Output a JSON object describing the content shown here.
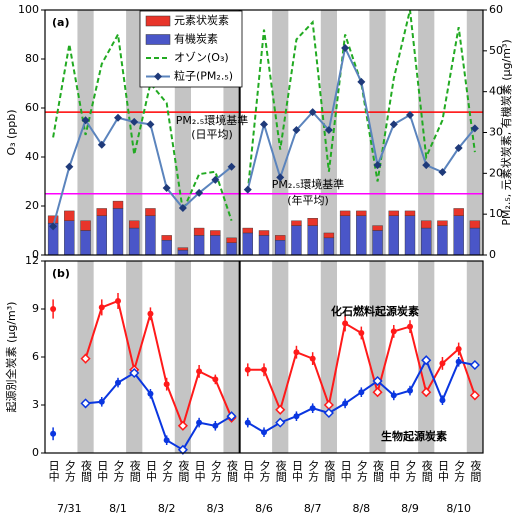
{
  "x_axis": {
    "categories": [
      "日中",
      "夕方",
      "夜間",
      "日中",
      "夕方",
      "夜間",
      "日中",
      "夕方",
      "夜間",
      "日中",
      "夕方",
      "夜間",
      "日中",
      "夕方",
      "夜間",
      "日中",
      "夕方",
      "夜間",
      "日中",
      "夕方",
      "夜間",
      "日中",
      "夕方",
      "夜間",
      "日中",
      "夕方",
      "夜間"
    ],
    "dates": [
      "7/31",
      "8/1",
      "8/2",
      "8/3",
      "8/6",
      "8/7",
      "8/8",
      "8/9",
      "8/10"
    ]
  },
  "chart_data": [
    {
      "type": "bar",
      "panel_label": "(a)",
      "ylabel": "O₃ (ppb)",
      "y2label": "PM₂.₅, 元素状炭素, 有機炭素 (μg/m³)",
      "ylim": [
        0,
        100
      ],
      "yticks": [
        0,
        20,
        40,
        60,
        80,
        100
      ],
      "y2lim": [
        0,
        60
      ],
      "y2ticks": [
        0,
        10,
        20,
        30,
        40,
        50,
        60
      ],
      "series": [
        {
          "name": "元素状炭素",
          "type": "bar",
          "axis": "y2",
          "color": "#e8352a",
          "values": [
            1.8,
            2.4,
            2.4,
            1.8,
            1.8,
            1.8,
            1.8,
            1.2,
            0.6,
            1.8,
            1.2,
            1.2,
            1.2,
            1.2,
            1.2,
            1.2,
            1.8,
            1.2,
            1.2,
            1.2,
            1.2,
            1.2,
            1.2,
            1.8,
            1.2,
            1.8,
            1.8
          ]
        },
        {
          "name": "有機炭素",
          "type": "bar",
          "axis": "y2",
          "color": "#4a56c8",
          "values": [
            7.8,
            8.4,
            6,
            9.6,
            11.4,
            6.6,
            9.6,
            3.6,
            1.2,
            4.8,
            4.8,
            3,
            5.4,
            4.8,
            3.6,
            7.2,
            7.2,
            4.2,
            9.6,
            9.6,
            6,
            9.6,
            9.6,
            6.6,
            7.2,
            9.6,
            6.6
          ]
        },
        {
          "name": "オゾン(O₃)",
          "type": "line",
          "style": "dashed",
          "color": "#22aa22",
          "values": [
            48,
            86,
            49,
            78,
            90,
            41,
            70,
            62,
            18,
            33,
            34,
            14,
            26,
            92,
            43,
            88,
            95,
            34,
            90,
            70,
            30,
            72,
            100,
            40,
            55,
            93,
            42
          ]
        },
        {
          "name": "粒子(PM₂.₅)",
          "type": "line",
          "axis": "y2",
          "marker": "diamond",
          "color": "#5b84bd",
          "marker_color": "#1f3a7a",
          "values": [
            7,
            21.6,
            33,
            27,
            33.6,
            32.6,
            32,
            16.4,
            11.5,
            15.2,
            18.4,
            21.6,
            16,
            32,
            19,
            30.6,
            35,
            30.6,
            50.7,
            42.4,
            22,
            32,
            34.3,
            22,
            20.3,
            26.2,
            31
          ]
        }
      ],
      "hlines": [
        {
          "value": 35,
          "axis": "y2",
          "color": "#ff0000",
          "label": [
            "PM₂.₅環境基準",
            "(日平均)"
          ]
        },
        {
          "value": 15,
          "axis": "y2",
          "color": "#ff00ff",
          "label": [
            "PM₂.₅環境基準",
            "(年平均)"
          ]
        }
      ]
    },
    {
      "type": "line",
      "panel_label": "(b)",
      "ylabel": "起源別全炭素 (μg/m³)",
      "ylim": [
        0,
        12
      ],
      "yticks": [
        0,
        3,
        6,
        9,
        12
      ],
      "series": [
        {
          "name": "化石燃料起源炭素",
          "color": "#ff1a1a",
          "values": [
            9.0,
            null,
            5.9,
            9.1,
            9.5,
            5.2,
            8.7,
            4.3,
            1.7,
            5.1,
            4.6,
            2.2,
            5.2,
            5.2,
            2.7,
            6.3,
            5.9,
            3.0,
            8.1,
            7.5,
            3.8,
            7.6,
            7.9,
            3.8,
            5.6,
            6.5,
            3.6
          ],
          "errors": [
            0.6,
            null,
            0.3,
            0.5,
            0.5,
            0.3,
            0.4,
            0.4,
            0.2,
            0.4,
            0.3,
            0.2,
            0.4,
            0.4,
            0.2,
            0.4,
            0.4,
            0.2,
            0.5,
            0.4,
            0.2,
            0.4,
            0.4,
            0.2,
            0.4,
            0.4,
            0.2
          ]
        },
        {
          "name": "生物起源炭素",
          "color": "#0a36e0",
          "values": [
            1.2,
            null,
            3.1,
            3.2,
            4.4,
            5.0,
            3.7,
            0.8,
            0.2,
            1.9,
            1.7,
            2.3,
            1.9,
            1.3,
            1.9,
            2.3,
            2.8,
            2.5,
            3.1,
            3.8,
            4.5,
            3.6,
            3.9,
            5.8,
            3.3,
            5.7,
            5.5
          ],
          "errors": [
            0.4,
            null,
            0.2,
            0.3,
            0.3,
            0.2,
            0.3,
            0.3,
            0.2,
            0.3,
            0.3,
            0.2,
            0.3,
            0.3,
            0.2,
            0.3,
            0.3,
            0.2,
            0.3,
            0.3,
            0.2,
            0.3,
            0.3,
            0.2,
            0.3,
            0.3,
            0.2
          ]
        }
      ]
    }
  ]
}
